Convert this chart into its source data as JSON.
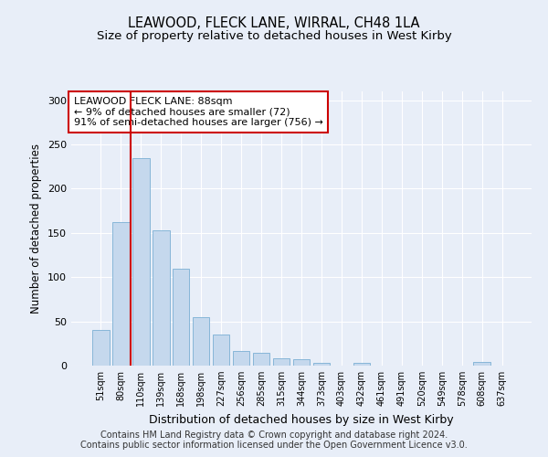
{
  "title": "LEAWOOD, FLECK LANE, WIRRAL, CH48 1LA",
  "subtitle": "Size of property relative to detached houses in West Kirby",
  "xlabel": "Distribution of detached houses by size in West Kirby",
  "ylabel": "Number of detached properties",
  "bar_color": "#c5d8ed",
  "bar_edge_color": "#7aafd4",
  "background_color": "#e8eef8",
  "grid_color": "#ffffff",
  "categories": [
    "51sqm",
    "80sqm",
    "110sqm",
    "139sqm",
    "168sqm",
    "198sqm",
    "227sqm",
    "256sqm",
    "285sqm",
    "315sqm",
    "344sqm",
    "373sqm",
    "403sqm",
    "432sqm",
    "461sqm",
    "491sqm",
    "520sqm",
    "549sqm",
    "578sqm",
    "608sqm",
    "637sqm"
  ],
  "values": [
    40,
    162,
    235,
    153,
    110,
    55,
    35,
    17,
    14,
    8,
    7,
    3,
    0,
    3,
    0,
    0,
    0,
    0,
    0,
    4,
    0
  ],
  "ylim": [
    0,
    310
  ],
  "yticks": [
    0,
    50,
    100,
    150,
    200,
    250,
    300
  ],
  "vline_x": 1.5,
  "vline_color": "#cc0000",
  "annotation_text": "LEAWOOD FLECK LANE: 88sqm\n← 9% of detached houses are smaller (72)\n91% of semi-detached houses are larger (756) →",
  "annotation_box_color": "#ffffff",
  "annotation_box_edge": "#cc0000",
  "footer_line1": "Contains HM Land Registry data © Crown copyright and database right 2024.",
  "footer_line2": "Contains public sector information licensed under the Open Government Licence v3.0.",
  "title_fontsize": 10.5,
  "subtitle_fontsize": 9.5,
  "footer_fontsize": 7
}
